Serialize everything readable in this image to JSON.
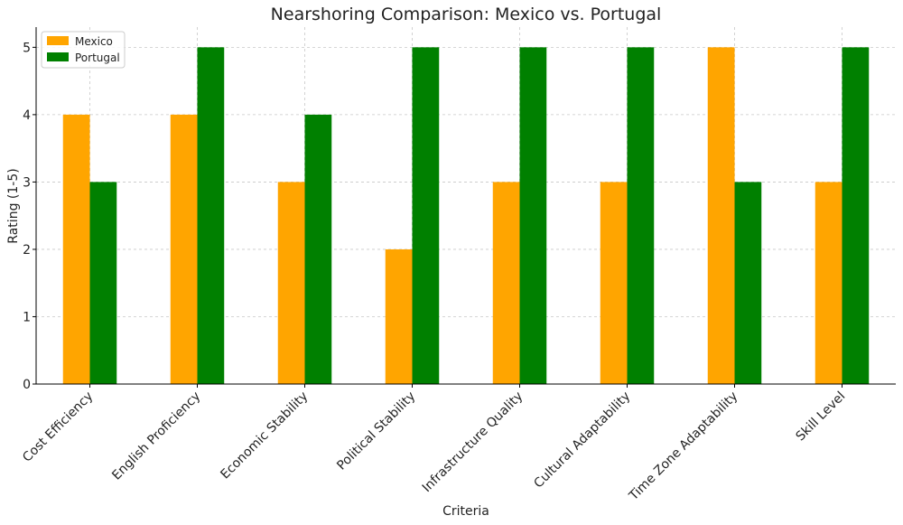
{
  "chart_data": {
    "type": "bar",
    "title": "Nearshoring Comparison: Mexico vs. Portugal",
    "xlabel": "Criteria",
    "ylabel": "Rating (1-5)",
    "ylim": [
      0,
      5.3
    ],
    "yticks": [
      0,
      1,
      2,
      3,
      4,
      5
    ],
    "grid": true,
    "legend_position": "top-left",
    "categories": [
      "Cost Efficiency",
      "English Proficiency",
      "Economic Stability",
      "Political Stability",
      "Infrastructure Quality",
      "Cultural Adaptability",
      "Time Zone Adaptability",
      "Skill Level"
    ],
    "series": [
      {
        "name": "Mexico",
        "color": "#FFA500",
        "values": [
          4,
          4,
          3,
          2,
          3,
          3,
          5,
          3
        ]
      },
      {
        "name": "Portugal",
        "color": "#008000",
        "values": [
          3,
          5,
          4,
          5,
          5,
          5,
          3,
          5
        ]
      }
    ]
  }
}
